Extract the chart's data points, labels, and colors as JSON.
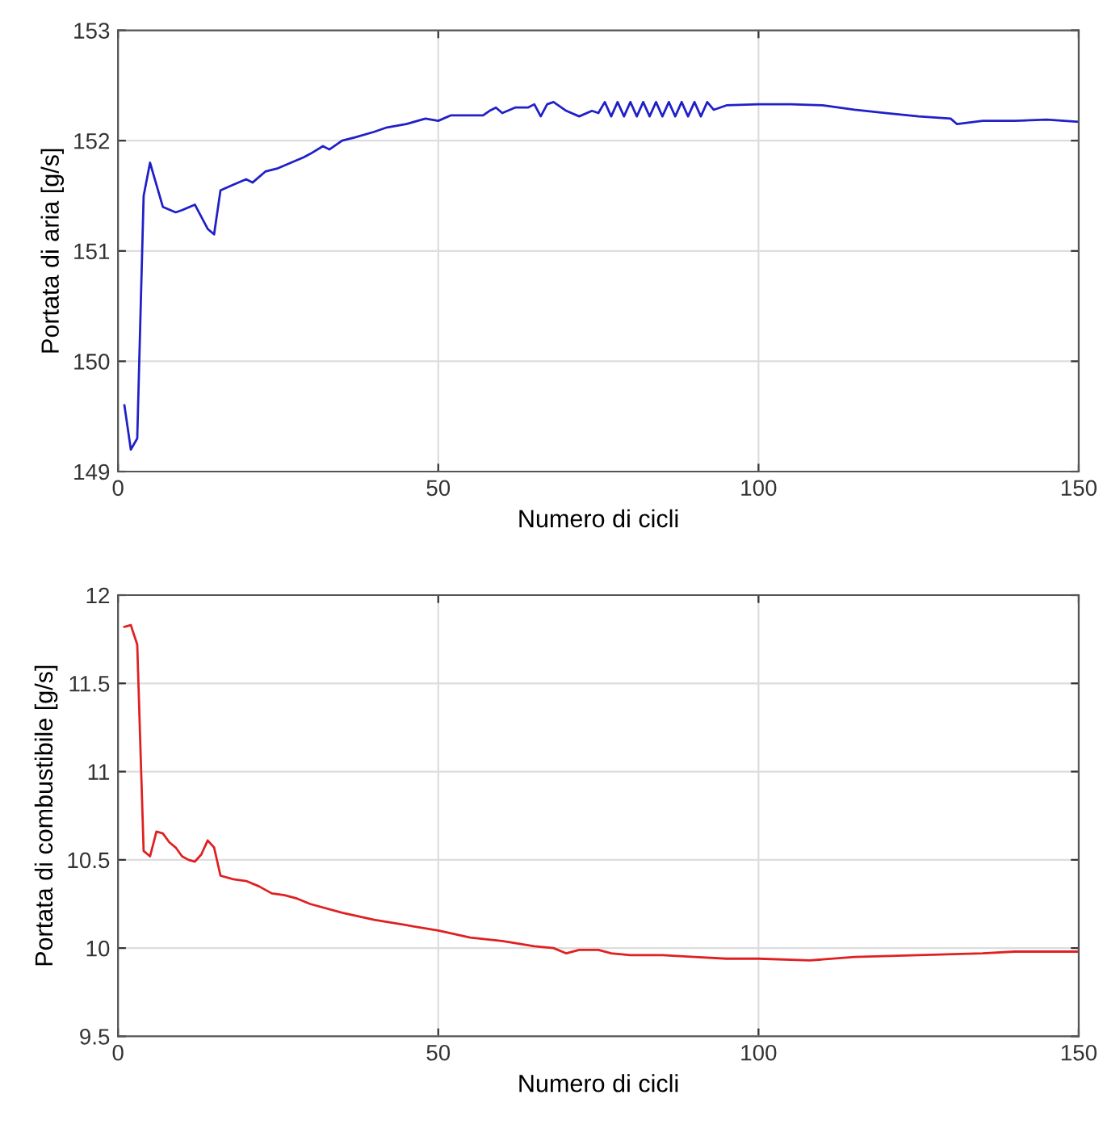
{
  "chart_data": [
    {
      "type": "line",
      "xlabel": "Numero di cicli",
      "ylabel": "Portata di aria [g/s]",
      "xlim": [
        0,
        150
      ],
      "xticks": [
        0,
        50,
        100,
        150
      ],
      "ylim": [
        149,
        153
      ],
      "yticks": [
        149,
        150,
        151,
        152,
        153
      ],
      "grid": true,
      "legend": false,
      "series": [
        {
          "color": "#2020c8",
          "x": [
            1,
            2,
            3,
            4,
            5,
            6,
            7,
            9,
            10,
            12,
            14,
            15,
            16,
            18,
            20,
            21,
            23,
            25,
            27,
            29,
            30,
            32,
            33,
            35,
            37,
            40,
            42,
            45,
            48,
            50,
            52,
            57,
            58,
            59,
            60,
            62,
            64,
            65,
            66,
            67,
            68,
            70,
            72,
            74,
            75,
            76,
            77,
            78,
            79,
            80,
            81,
            82,
            83,
            84,
            85,
            86,
            87,
            88,
            89,
            90,
            91,
            92,
            93,
            95,
            100,
            105,
            110,
            115,
            120,
            125,
            130,
            131,
            135,
            140,
            145,
            150
          ],
          "values": [
            149.6,
            149.2,
            149.3,
            151.5,
            151.8,
            151.6,
            151.4,
            151.35,
            151.37,
            151.42,
            151.2,
            151.15,
            151.55,
            151.6,
            151.65,
            151.62,
            151.72,
            151.75,
            151.8,
            151.85,
            151.88,
            151.95,
            151.92,
            152.0,
            152.03,
            152.08,
            152.12,
            152.15,
            152.2,
            152.18,
            152.23,
            152.23,
            152.27,
            152.3,
            152.25,
            152.3,
            152.3,
            152.33,
            152.22,
            152.33,
            152.35,
            152.27,
            152.22,
            152.27,
            152.25,
            152.35,
            152.22,
            152.35,
            152.22,
            152.35,
            152.22,
            152.35,
            152.22,
            152.35,
            152.22,
            152.35,
            152.22,
            152.35,
            152.22,
            152.35,
            152.22,
            152.35,
            152.28,
            152.32,
            152.33,
            152.33,
            152.32,
            152.28,
            152.25,
            152.22,
            152.2,
            152.15,
            152.18,
            152.18,
            152.19,
            152.17
          ]
        }
      ]
    },
    {
      "type": "line",
      "xlabel": "Numero di cicli",
      "ylabel": "Portata di combustibile [g/s]",
      "xlim": [
        0,
        150
      ],
      "xticks": [
        0,
        50,
        100,
        150
      ],
      "ylim": [
        9.5,
        12
      ],
      "yticks": [
        9.5,
        10,
        10.5,
        11,
        11.5,
        12
      ],
      "grid": true,
      "legend": false,
      "series": [
        {
          "color": "#e02020",
          "x": [
            1,
            2,
            3,
            4,
            5,
            6,
            7,
            8,
            9,
            10,
            11,
            12,
            13,
            14,
            15,
            16,
            18,
            20,
            22,
            24,
            26,
            28,
            30,
            35,
            40,
            45,
            50,
            55,
            60,
            65,
            68,
            70,
            72,
            75,
            77,
            80,
            85,
            90,
            95,
            100,
            108,
            115,
            125,
            135,
            140,
            150
          ],
          "values": [
            11.82,
            11.83,
            11.72,
            10.55,
            10.52,
            10.66,
            10.65,
            10.6,
            10.57,
            10.52,
            10.5,
            10.49,
            10.53,
            10.61,
            10.57,
            10.41,
            10.39,
            10.38,
            10.35,
            10.31,
            10.3,
            10.28,
            10.25,
            10.2,
            10.16,
            10.13,
            10.1,
            10.06,
            10.04,
            10.01,
            10.0,
            9.97,
            9.99,
            9.99,
            9.97,
            9.96,
            9.96,
            9.95,
            9.94,
            9.94,
            9.93,
            9.95,
            9.96,
            9.97,
            9.98,
            9.98
          ]
        }
      ]
    }
  ]
}
